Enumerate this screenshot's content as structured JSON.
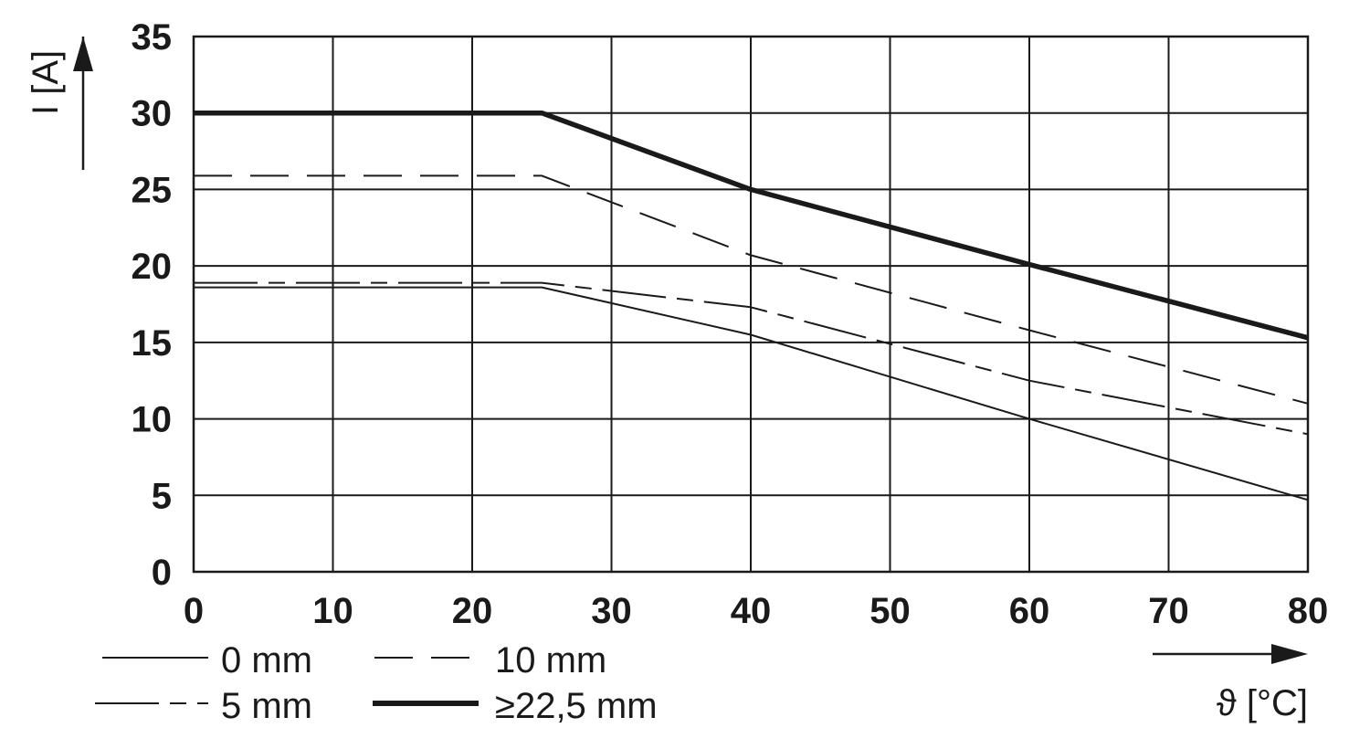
{
  "chart_data": {
    "type": "line",
    "xlabel": "ϑ [°C]",
    "ylabel": "I [A]",
    "xlim": [
      0,
      80
    ],
    "ylim": [
      0,
      35
    ],
    "xticks": [
      0,
      10,
      20,
      30,
      40,
      50,
      60,
      70,
      80
    ],
    "yticks": [
      0,
      5,
      10,
      15,
      20,
      25,
      30,
      35
    ],
    "xtick_labels": [
      "0",
      "10",
      "20",
      "30",
      "40",
      "50",
      "60",
      "70",
      "80"
    ],
    "ytick_labels": [
      "0",
      "5",
      "10",
      "15",
      "20",
      "25",
      "30",
      "35"
    ],
    "grid": true,
    "legend_position": "bottom-left",
    "series": [
      {
        "name": "0 mm",
        "style": "solid-thin",
        "x": [
          0,
          25,
          40,
          60,
          80
        ],
        "y": [
          18.6,
          18.6,
          15.5,
          10,
          4.7
        ]
      },
      {
        "name": "10 mm",
        "style": "dashed",
        "x": [
          0,
          25,
          40,
          60,
          80
        ],
        "y": [
          25.9,
          25.9,
          20.7,
          15.8,
          11
        ]
      },
      {
        "name": "5 mm",
        "style": "dash-dot",
        "x": [
          0,
          25,
          40,
          60,
          80
        ],
        "y": [
          18.9,
          18.9,
          17.3,
          12.5,
          9
        ]
      },
      {
        "name": "≥22,5 mm",
        "style": "solid-thick",
        "x": [
          0,
          25,
          40,
          60,
          80
        ],
        "y": [
          30,
          30,
          25,
          20.1,
          15.3
        ]
      }
    ]
  }
}
